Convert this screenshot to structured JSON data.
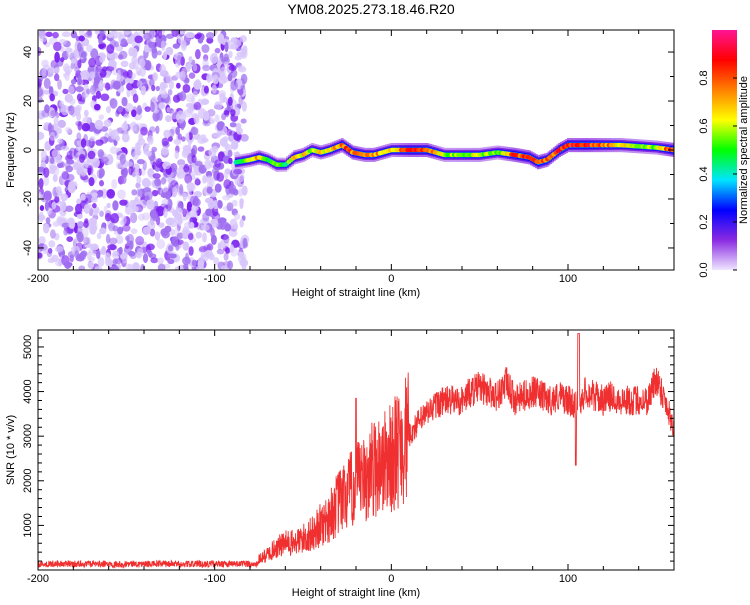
{
  "title": "YM08.2025.273.18.46.R20",
  "chart_data": [
    {
      "type": "heatmap",
      "name": "spectrogram",
      "xlabel": "Height of straight line (km)",
      "ylabel": "Frequency (Hz)",
      "xlim": [
        -200,
        160
      ],
      "ylim": [
        -49,
        49
      ],
      "xticks": [
        -200,
        -100,
        0,
        100
      ],
      "xtick_labels": [
        "-200",
        "-100",
        "0",
        "100"
      ],
      "yticks": [
        -40,
        -20,
        0,
        20,
        40
      ],
      "ytick_labels": [
        "-40",
        "-20",
        "0",
        "20",
        "40"
      ],
      "noise_region_x": [
        -200,
        -86
      ],
      "ridge": {
        "x": [
          -88,
          -80,
          -75,
          -70,
          -65,
          -60,
          -55,
          -50,
          -45,
          -40,
          -35,
          -28,
          -22,
          -15,
          -10,
          0,
          10,
          20,
          30,
          50,
          60,
          70,
          78,
          83,
          88,
          95,
          100,
          110,
          130,
          150,
          160
        ],
        "freq": [
          -5,
          -4,
          -3,
          -4,
          -6,
          -6,
          -3,
          -2,
          0,
          -1,
          0,
          2,
          -1,
          -2,
          -2,
          0,
          0,
          0,
          -2,
          -2,
          -1,
          -2,
          -3,
          -5,
          -4,
          0,
          2,
          2,
          2,
          1,
          0
        ],
        "amplitude": [
          0.5,
          0.6,
          0.8,
          0.5,
          0.6,
          0.5,
          0.7,
          0.7,
          0.6,
          0.7,
          0.7,
          0.8,
          0.85,
          0.75,
          0.8,
          0.7,
          0.9,
          0.9,
          0.6,
          0.65,
          0.55,
          0.9,
          0.9,
          0.95,
          0.85,
          0.9,
          0.9,
          0.95,
          0.7,
          0.6,
          0.95
        ]
      },
      "colorbar": {
        "label": "Normalized spectral amplitude",
        "range": [
          0,
          1
        ],
        "ticks": [
          0.0,
          0.2,
          0.4,
          0.6,
          0.8
        ],
        "tick_labels": [
          "0.0",
          "0.2",
          "0.4",
          "0.6",
          "0.8"
        ],
        "colors": [
          "#ffffff",
          "#8a2be2",
          "#0000ff",
          "#00e5ff",
          "#00ff00",
          "#ffff00",
          "#ff8000",
          "#ff0000",
          "#ff1493"
        ]
      }
    },
    {
      "type": "line",
      "name": "snr",
      "xlabel": "Height of straight line (km)",
      "ylabel": "SNR (10 * v/v)",
      "xlim": [
        -200,
        160
      ],
      "ylim": [
        0,
        5380
      ],
      "xticks": [
        -200,
        -100,
        0,
        100
      ],
      "xtick_labels": [
        "-200",
        "-100",
        "0",
        "100"
      ],
      "yticks": [
        1000,
        2000,
        3000,
        4000,
        5000
      ],
      "ytick_labels": [
        "1000",
        "2000",
        "3000",
        "4000",
        "5000"
      ],
      "color": "#f03030",
      "series": [
        {
          "name": "SNR",
          "x": [
            -200,
            -150,
            -100,
            -80,
            -72,
            -65,
            -60,
            -55,
            -50,
            -45,
            -40,
            -35,
            -30,
            -25,
            -20,
            -15,
            -10,
            -5,
            0,
            5,
            10,
            15,
            20,
            25,
            30,
            35,
            40,
            45,
            50,
            55,
            60,
            65,
            70,
            75,
            80,
            85,
            90,
            95,
            100,
            105,
            110,
            115,
            120,
            125,
            130,
            135,
            140,
            145,
            150,
            155,
            160
          ],
          "y": [
            100,
            100,
            100,
            120,
            300,
            500,
            600,
            600,
            700,
            800,
            1000,
            1200,
            1500,
            1700,
            1900,
            2000,
            2300,
            2400,
            2500,
            2800,
            3000,
            3300,
            3500,
            3700,
            3800,
            3800,
            3800,
            4000,
            4100,
            4000,
            3900,
            4200,
            3800,
            3900,
            4000,
            3900,
            3800,
            3900,
            3800,
            3700,
            4000,
            3900,
            3800,
            3900,
            3800,
            3800,
            3800,
            3800,
            4300,
            3800,
            3200
          ]
        }
      ]
    }
  ]
}
